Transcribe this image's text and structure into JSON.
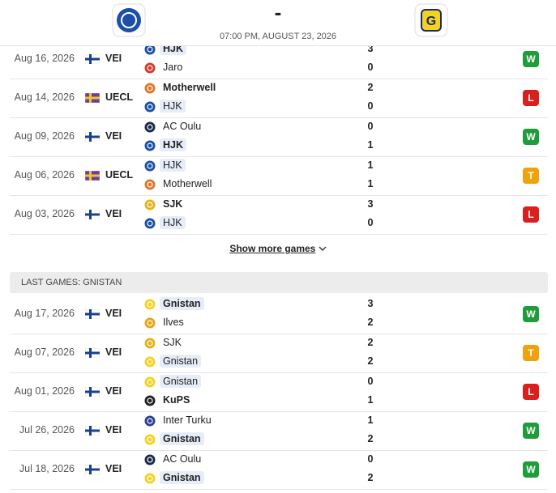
{
  "header": {
    "dash": "-",
    "datetime": "07:00 PM, AUGUST 23, 2026",
    "home_logo": "#1b4fa8",
    "away_logo": "#f4d21f"
  },
  "hjk_games": [
    {
      "date": "Aug 16, 2026",
      "competition": "VEI",
      "flag": [
        "#ffffff",
        "#1b3f8f"
      ],
      "home": {
        "name": "HJK",
        "logo": "#1b4fa8"
      },
      "away": {
        "name": "Jaro",
        "logo": "#d33b2c"
      },
      "home_score": 3,
      "away_score": 0,
      "result": "W",
      "result_color": "#1f9d3a"
    },
    {
      "date": "Aug 14, 2026",
      "competition": "UECL",
      "flag": [
        "#6a3fa0",
        "#f2c230"
      ],
      "home": {
        "name": "Motherwell",
        "logo": "#e0782a"
      },
      "away": {
        "name": "HJK",
        "logo": "#1b4fa8"
      },
      "home_score": 2,
      "away_score": 0,
      "result": "L",
      "result_color": "#d9201e"
    },
    {
      "date": "Aug 09, 2026",
      "competition": "VEI",
      "flag": [
        "#ffffff",
        "#1b3f8f"
      ],
      "home": {
        "name": "AC Oulu",
        "logo": "#1b2a4a"
      },
      "away": {
        "name": "HJK",
        "logo": "#1b4fa8"
      },
      "home_score": 0,
      "away_score": 1,
      "result": "W",
      "result_color": "#1f9d3a"
    },
    {
      "date": "Aug 06, 2026",
      "competition": "UECL",
      "flag": [
        "#6a3fa0",
        "#f2c230"
      ],
      "home": {
        "name": "HJK",
        "logo": "#1b4fa8"
      },
      "away": {
        "name": "Motherwell",
        "logo": "#e0782a"
      },
      "home_score": 1,
      "away_score": 1,
      "result": "T",
      "result_color": "#f0a20c"
    },
    {
      "date": "Aug 03, 2026",
      "competition": "VEI",
      "flag": [
        "#ffffff",
        "#1b3f8f"
      ],
      "home": {
        "name": "SJK",
        "logo": "#e6b21a"
      },
      "away": {
        "name": "HJK",
        "logo": "#1b4fa8"
      },
      "home_score": 3,
      "away_score": 0,
      "result": "L",
      "result_color": "#d9201e"
    }
  ],
  "show_more": "Show more games",
  "gnistan_section": {
    "title": "LAST GAMES: GNISTAN",
    "games": [
      {
        "date": "Aug 17, 2026",
        "competition": "VEI",
        "flag": [
          "#ffffff",
          "#1b3f8f"
        ],
        "home": {
          "name": "Gnistan",
          "logo": "#f4d21f"
        },
        "away": {
          "name": "Ilves",
          "logo": "#e8a51b"
        },
        "home_score": 3,
        "away_score": 2,
        "result": "W",
        "result_color": "#1f9d3a"
      },
      {
        "date": "Aug 07, 2026",
        "competition": "VEI",
        "flag": [
          "#ffffff",
          "#1b3f8f"
        ],
        "home": {
          "name": "SJK",
          "logo": "#e6b21a"
        },
        "away": {
          "name": "Gnistan",
          "logo": "#f4d21f"
        },
        "home_score": 2,
        "away_score": 2,
        "result": "T",
        "result_color": "#f0a20c"
      },
      {
        "date": "Aug 01, 2026",
        "competition": "VEI",
        "flag": [
          "#ffffff",
          "#1b3f8f"
        ],
        "home": {
          "name": "Gnistan",
          "logo": "#f4d21f"
        },
        "away": {
          "name": "KuPS",
          "logo": "#222222"
        },
        "home_score": 0,
        "away_score": 1,
        "result": "L",
        "result_color": "#d9201e"
      },
      {
        "date": "Jul 26, 2026",
        "competition": "VEI",
        "flag": [
          "#ffffff",
          "#1b3f8f"
        ],
        "home": {
          "name": "Inter Turku",
          "logo": "#2a3f8f"
        },
        "away": {
          "name": "Gnistan",
          "logo": "#f4d21f"
        },
        "home_score": 1,
        "away_score": 2,
        "result": "W",
        "result_color": "#1f9d3a"
      },
      {
        "date": "Jul 18, 2026",
        "competition": "VEI",
        "flag": [
          "#ffffff",
          "#1b3f8f"
        ],
        "home": {
          "name": "AC Oulu",
          "logo": "#1b2a4a"
        },
        "away": {
          "name": "Gnistan",
          "logo": "#f4d21f"
        },
        "home_score": 0,
        "away_score": 2,
        "result": "W",
        "result_color": "#1f9d3a"
      }
    ]
  }
}
